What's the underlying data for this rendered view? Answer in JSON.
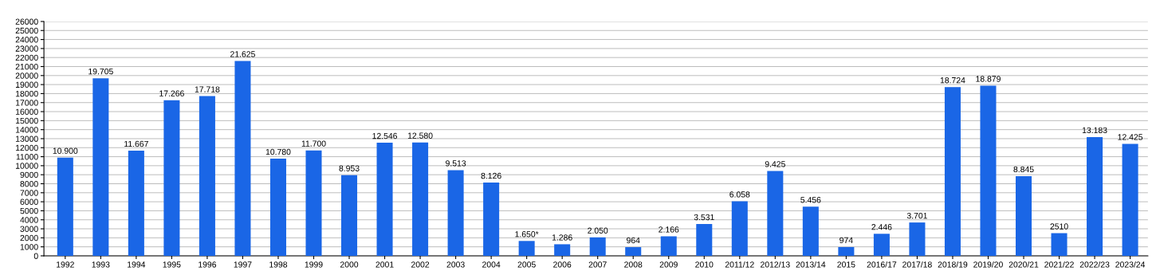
{
  "chart_data": {
    "type": "bar",
    "categories": [
      "1992",
      "1993",
      "1994",
      "1995",
      "1996",
      "1997",
      "1998",
      "1999",
      "2000",
      "2001",
      "2002",
      "2003",
      "2004",
      "2005",
      "2006",
      "2007",
      "2008",
      "2009",
      "2010",
      "2011/12",
      "2012/13",
      "2013/14",
      "2015",
      "2016/17",
      "2017/18",
      "2018/19",
      "2019/20",
      "2020/21",
      "2021/22",
      "2022/23",
      "2023/24"
    ],
    "values": [
      10900,
      19705,
      11667,
      17266,
      17718,
      21625,
      10780,
      11700,
      8953,
      12546,
      12580,
      9513,
      8126,
      1650,
      1286,
      2050,
      964,
      2166,
      3531,
      6058,
      9425,
      5456,
      974,
      2446,
      3701,
      18724,
      18879,
      8845,
      2510,
      13183,
      12425
    ],
    "value_labels": [
      "10.900",
      "19.705",
      "11.667",
      "17.266",
      "17.718",
      "21.625",
      "10.780",
      "11.700",
      "8.953",
      "12.546",
      "12.580",
      "9.513",
      "8.126",
      "1.650*",
      "1.286",
      "2.050",
      "964",
      "2.166",
      "3.531",
      "6.058",
      "9.425",
      "5.456",
      "974",
      "2.446",
      "3.701",
      "18.724",
      "18.879",
      "8.845",
      "2510",
      "13.183",
      "12.425"
    ],
    "color": "#1a66e6",
    "ylim": [
      0,
      26000
    ],
    "yticks": [
      0,
      1000,
      2000,
      3000,
      4000,
      5000,
      6000,
      7000,
      8000,
      9000,
      10000,
      11000,
      12000,
      13000,
      14000,
      15000,
      16000,
      17000,
      18000,
      19000,
      20000,
      21000,
      22000,
      23000,
      24000,
      25000,
      26000
    ],
    "grid": "y"
  }
}
